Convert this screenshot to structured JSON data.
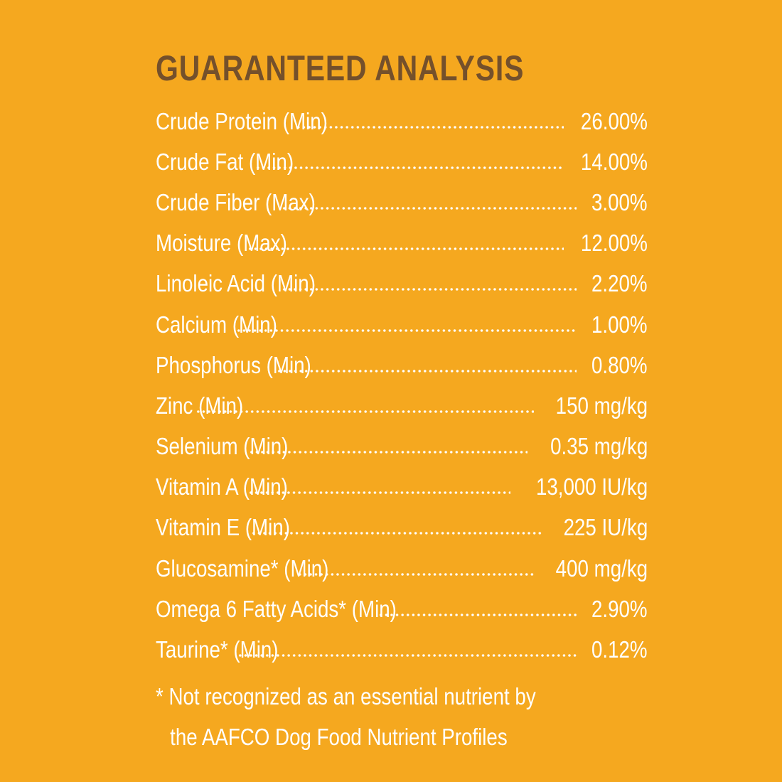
{
  "heading": "GUARANTEED ANALYSIS",
  "rows": [
    {
      "label": "Crude Protein (Min)",
      "value": "26.00%"
    },
    {
      "label": "Crude Fat (Min)",
      "value": "14.00%"
    },
    {
      "label": "Crude Fiber (Max)",
      "value": "3.00%"
    },
    {
      "label": "Moisture (Max)",
      "value": "12.00%"
    },
    {
      "label": "Linoleic Acid (Min)",
      "value": "2.20%"
    },
    {
      "label": "Calcium (Min)",
      "value": "1.00%"
    },
    {
      "label": "Phosphorus (Min)",
      "value": "0.80%"
    },
    {
      "label": "Zinc (Min)",
      "value": "150 mg/kg"
    },
    {
      "label": "Selenium (Min)",
      "value": "0.35 mg/kg"
    },
    {
      "label": "Vitamin A (Min)",
      "value": "13,000 IU/kg"
    },
    {
      "label": "Vitamin E (Min)",
      "value": "225 IU/kg"
    },
    {
      "label": "Glucosamine* (Min)",
      "value": "400 mg/kg"
    },
    {
      "label": "Omega 6 Fatty Acids* (Min)",
      "value": "2.90%"
    },
    {
      "label": "Taurine* (Min)",
      "value": "0.12%"
    }
  ],
  "footnote": {
    "line1": "* Not recognized as an essential nutrient by",
    "line2": "the AAFCO Dog Food Nutrient Profiles"
  },
  "colors": {
    "background": "#F5A81F",
    "heading": "#74502B",
    "text": "#FFFFFF"
  }
}
